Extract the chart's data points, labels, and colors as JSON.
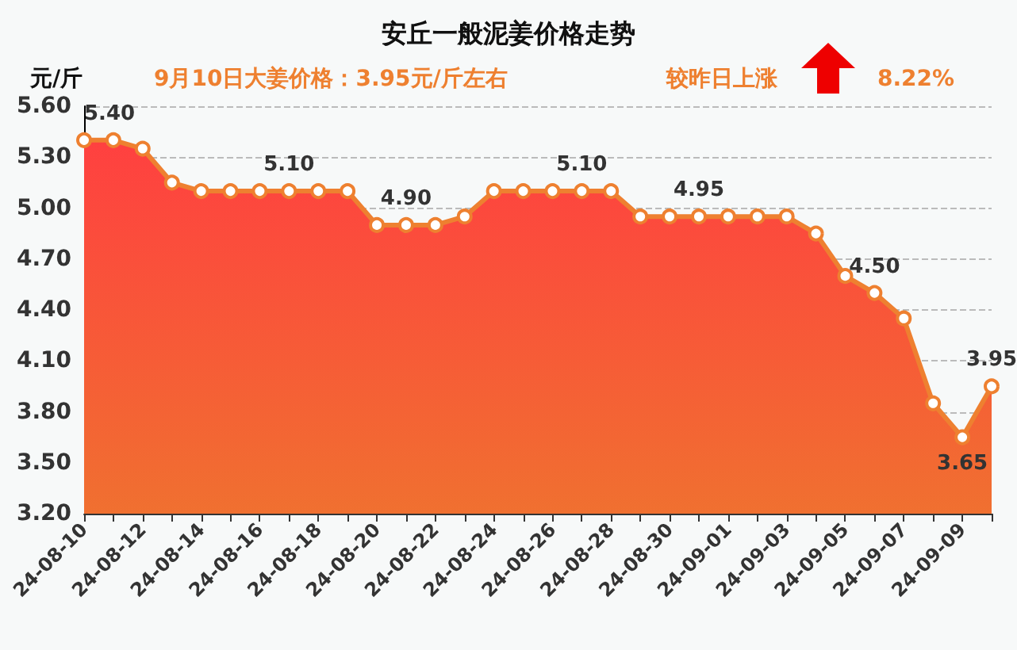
{
  "chart_data": {
    "type": "area",
    "title": "安丘一般泥姜价格走势",
    "subtitle": "9月10日大姜价格：3.95元/斤左右",
    "ylabel": "元/斤",
    "annotations": [
      "较昨日上涨",
      "8.22%"
    ],
    "categories": [
      "24-08-10",
      null,
      "24-08-12",
      null,
      "24-08-14",
      null,
      "24-08-16",
      null,
      "24-08-18",
      null,
      "24-08-20",
      null,
      "24-08-22",
      null,
      "24-08-24",
      null,
      "24-08-26",
      null,
      "24-08-28",
      null,
      "24-08-30",
      null,
      "24-09-01",
      null,
      "24-09-03",
      null,
      "24-09-05",
      null,
      "24-09-07",
      null,
      "24-09-09",
      null
    ],
    "series": [
      {
        "color": "#ee8030",
        "values": [
          5.4,
          5.4,
          5.35,
          5.15,
          5.1,
          5.1,
          5.1,
          5.1,
          5.1,
          5.1,
          4.9,
          4.9,
          4.9,
          4.95,
          5.1,
          5.1,
          5.1,
          5.1,
          5.1,
          4.95,
          4.95,
          4.95,
          4.95,
          4.95,
          4.95,
          4.85,
          4.6,
          4.5,
          4.35,
          3.85,
          3.65,
          3.95
        ],
        "value_labels": [
          "5.40",
          null,
          null,
          null,
          null,
          null,
          null,
          "5.10",
          null,
          null,
          null,
          "4.90",
          null,
          null,
          null,
          null,
          null,
          "5.10",
          null,
          null,
          null,
          "4.95",
          null,
          null,
          null,
          null,
          null,
          "4.50",
          null,
          null,
          "3.65",
          "3.95"
        ]
      }
    ],
    "ylim": [
      3.2,
      5.6
    ],
    "yticks": [
      {
        "value": 3.2,
        "label": "3.20"
      },
      {
        "value": 3.5,
        "label": "3.50"
      },
      {
        "value": 3.8,
        "label": "3.80"
      },
      {
        "value": 4.1,
        "label": "4.10"
      },
      {
        "value": 4.4,
        "label": "4.40"
      },
      {
        "value": 4.7,
        "label": "4.70"
      },
      {
        "value": 5.0,
        "label": "5.00"
      },
      {
        "value": 5.3,
        "label": "5.30"
      },
      {
        "value": 5.6,
        "label": "5.60"
      }
    ],
    "grid": "y",
    "marker": "circle",
    "line_style": "solid"
  }
}
